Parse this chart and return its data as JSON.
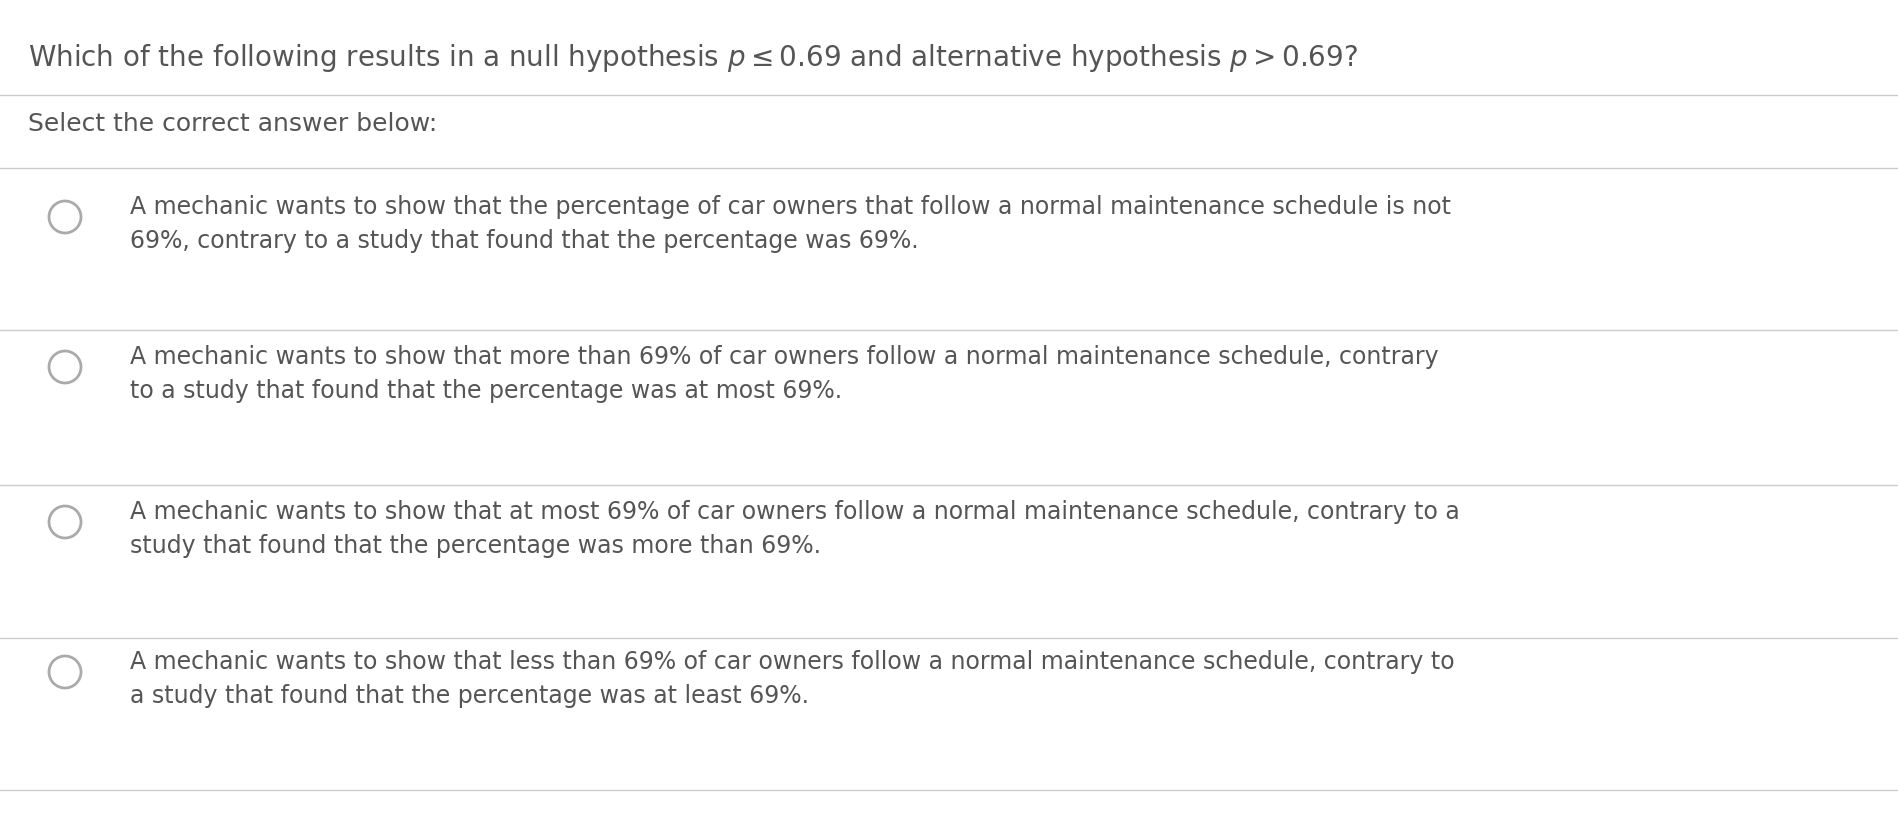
{
  "bg_color": "#ffffff",
  "text_color": "#555555",
  "line_color": "#cccccc",
  "title_part1": "Which of the following results in a null hypothesis ",
  "title_math1": "$p \\leq 0.69$",
  "title_part2": " and alternative hypothesis ",
  "title_math2": "$p > 0.69$",
  "title_part3": "?",
  "subtitle": "Select the correct answer below:",
  "options": [
    "A mechanic wants to show that the percentage of car owners that follow a normal maintenance schedule is not\n69%, contrary to a study that found that the percentage was 69%.",
    "A mechanic wants to show that more than 69% of car owners follow a normal maintenance schedule, contrary\nto a study that found that the percentage was at most 69%.",
    "A mechanic wants to show that at most 69% of car owners follow a normal maintenance schedule, contrary to a\nstudy that found that the percentage was more than 69%.",
    "A mechanic wants to show that less than 69% of car owners follow a normal maintenance schedule, contrary to\na study that found that the percentage was at least 69%."
  ],
  "title_fontsize": 20,
  "subtitle_fontsize": 18,
  "option_fontsize": 17,
  "fig_width": 18.98,
  "fig_height": 8.14,
  "circle_color": "#aaaaaa",
  "circle_linewidth": 2.0
}
